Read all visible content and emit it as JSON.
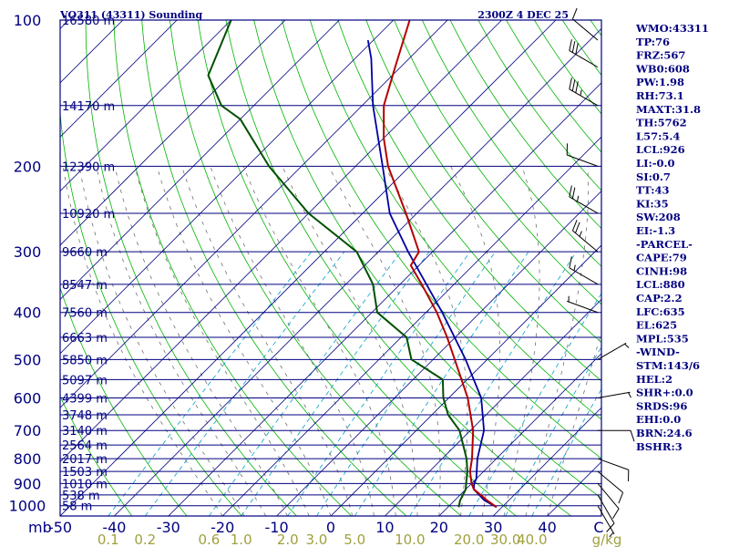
{
  "chart_data": {
    "type": "skew-t sounding",
    "title": "VQ311 (43311) Sounding",
    "valid_time": "2300Z  4 DEC 25",
    "pressure_axis_label": "mb",
    "pressure_levels": [
      100,
      200,
      300,
      400,
      500,
      600,
      700,
      800,
      900,
      1000
    ],
    "pressure_range": [
      1050,
      100
    ],
    "temperature_ticks": [
      -50,
      -40,
      -30,
      -20,
      -10,
      0,
      10,
      20,
      30,
      40
    ],
    "temperature_tick_labels": [
      "-50",
      "-40",
      "-30",
      "-20",
      "-10",
      "0",
      "10",
      "20",
      "30",
      "40"
    ],
    "temperature_range": [
      -50,
      50
    ],
    "temperature_unit": "C",
    "mixing_ratio_labels": [
      "0.1",
      "0.2",
      "0.6",
      "1.0",
      "2.0",
      "3.0",
      "5.0",
      "10.0",
      "20.0",
      "30.0",
      "40.0"
    ],
    "mixing_ratio_values": [
      0.1,
      0.2,
      0.6,
      1.0,
      2.0,
      3.0,
      5.0,
      10.0,
      20.0,
      30.0,
      40.0
    ],
    "mixing_ratio_unit": "g/kg",
    "height_labels": [
      {
        "p": 100,
        "label": "16580 m"
      },
      {
        "p": 150,
        "label": "14170 m"
      },
      {
        "p": 200,
        "label": "12390 m"
      },
      {
        "p": 250,
        "label": "10920 m"
      },
      {
        "p": 300,
        "label": "9660 m"
      },
      {
        "p": 350,
        "label": "8547 m"
      },
      {
        "p": 400,
        "label": "7560 m"
      },
      {
        "p": 450,
        "label": "6663 m"
      },
      {
        "p": 500,
        "label": "5850 m"
      },
      {
        "p": 550,
        "label": "5097 m"
      },
      {
        "p": 600,
        "label": "4399 m"
      },
      {
        "p": 650,
        "label": "3748 m"
      },
      {
        "p": 700,
        "label": "3140 m"
      },
      {
        "p": 750,
        "label": "2564 m"
      },
      {
        "p": 800,
        "label": "2017 m"
      },
      {
        "p": 850,
        "label": "1503 m"
      },
      {
        "p": 900,
        "label": "1010 m"
      },
      {
        "p": 950,
        "label": "538 m"
      },
      {
        "p": 1000,
        "label": "58 m"
      }
    ],
    "temperature_profile": [
      [
        1007,
        29
      ],
      [
        975,
        26
      ],
      [
        925,
        21.5
      ],
      [
        900,
        20
      ],
      [
        850,
        17.5
      ],
      [
        800,
        15.5
      ],
      [
        700,
        10.5
      ],
      [
        600,
        3.5
      ],
      [
        500,
        -6
      ],
      [
        450,
        -11.5
      ],
      [
        400,
        -18
      ],
      [
        350,
        -26
      ],
      [
        320,
        -31.5
      ],
      [
        300,
        -32.5
      ],
      [
        250,
        -42
      ],
      [
        200,
        -54
      ],
      [
        175,
        -60
      ],
      [
        150,
        -66
      ],
      [
        125,
        -71
      ],
      [
        100,
        -77
      ]
    ],
    "dewpoint_profile": [
      [
        1007,
        22
      ],
      [
        975,
        21
      ],
      [
        925,
        20
      ],
      [
        900,
        19
      ],
      [
        850,
        17
      ],
      [
        800,
        14.5
      ],
      [
        700,
        8
      ],
      [
        650,
        3
      ],
      [
        600,
        -1
      ],
      [
        550,
        -4.5
      ],
      [
        500,
        -14
      ],
      [
        450,
        -19
      ],
      [
        400,
        -29
      ],
      [
        350,
        -35
      ],
      [
        300,
        -44
      ],
      [
        250,
        -60
      ],
      [
        200,
        -76
      ],
      [
        160,
        -90
      ],
      [
        150,
        -96
      ],
      [
        130,
        -104
      ],
      [
        100,
        -110
      ]
    ],
    "parcel_profile": [
      [
        1007,
        29
      ],
      [
        975,
        25.5
      ],
      [
        950,
        23.5
      ],
      [
        925,
        21.5
      ],
      [
        900,
        20.5
      ],
      [
        880,
        20
      ],
      [
        800,
        16.5
      ],
      [
        700,
        12.5
      ],
      [
        600,
        6
      ],
      [
        500,
        -4
      ],
      [
        400,
        -17
      ],
      [
        300,
        -34.5
      ],
      [
        250,
        -45
      ],
      [
        200,
        -55
      ],
      [
        150,
        -68
      ],
      [
        120,
        -77
      ],
      [
        110,
        -81
      ]
    ],
    "wind_barbs": [
      {
        "p": 1000,
        "dir": 150,
        "kt": 5
      },
      {
        "p": 950,
        "dir": 150,
        "kt": 10
      },
      {
        "p": 900,
        "dir": 140,
        "kt": 10
      },
      {
        "p": 850,
        "dir": 130,
        "kt": 10
      },
      {
        "p": 800,
        "dir": 110,
        "kt": 10
      },
      {
        "p": 700,
        "dir": 90,
        "kt": 10
      },
      {
        "p": 600,
        "dir": 80,
        "kt": 5
      },
      {
        "p": 500,
        "dir": 60,
        "kt": 5
      },
      {
        "p": 400,
        "dir": 290,
        "kt": 5
      },
      {
        "p": 350,
        "dir": 300,
        "kt": 15
      },
      {
        "p": 300,
        "dir": 310,
        "kt": 25
      },
      {
        "p": 250,
        "dir": 300,
        "kt": 25
      },
      {
        "p": 200,
        "dir": 290,
        "kt": 10
      },
      {
        "p": 150,
        "dir": 300,
        "kt": 35
      },
      {
        "p": 125,
        "dir": 300,
        "kt": 30
      },
      {
        "p": 110,
        "dir": 310,
        "kt": 10
      }
    ]
  },
  "stats": [
    "WMO:43311",
    "TP:76",
    "FRZ:567",
    "WB0:608",
    "PW:1.98",
    "RH:73.1",
    "MAXT:31.8",
    "TH:5762",
    "L57:5.4",
    "LCL:926",
    "LI:-0.0",
    "SI:0.7",
    "TT:43",
    "KI:35",
    "SW:208",
    "EI:-1.3",
    "-PARCEL-",
    "CAPE:79",
    "CINH:98",
    "LCL:880",
    "CAP:2.2",
    "LFC:635",
    "EL:625",
    "MPL:535",
    "-WIND-",
    "STM:143/6",
    "HEL:2",
    "SHR+:0.0",
    "SRDS:96",
    "EHI:0.0",
    "BRN:24.6",
    "BSHR:3"
  ],
  "colors": {
    "axis": "#000080",
    "isobar": "#000080",
    "skew_isotherm": "#000080",
    "dry_adiabat": "#00b400",
    "moist_adiabat": "#707070",
    "mixing_ratio": "#00a0c8",
    "temperature": "#b40000",
    "dewpoint": "#005000",
    "parcel": "#0000a0",
    "wind_barb": "#000000",
    "mixing_label": "#a0a040"
  }
}
